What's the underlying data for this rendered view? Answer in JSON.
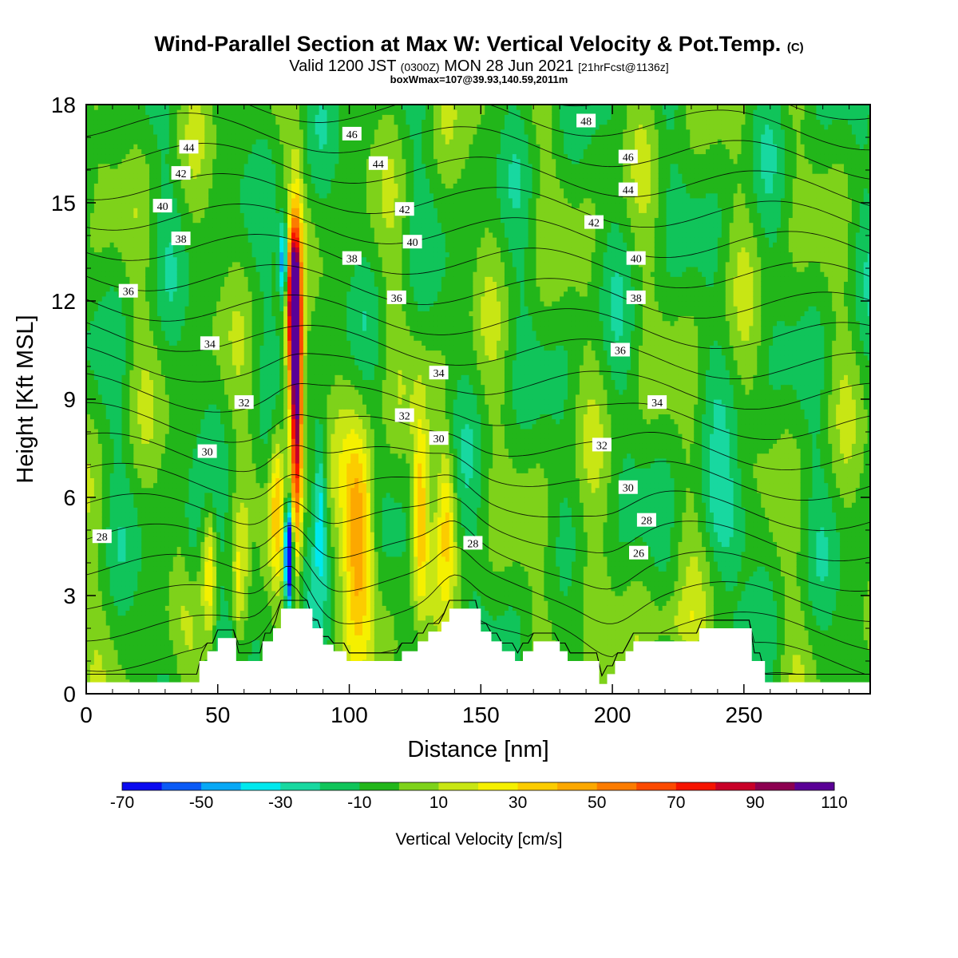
{
  "header": {
    "title": "Wind-Parallel Section at Max W: Vertical Velocity & Pot.Temp.",
    "title_tag": "(C)",
    "subtitle_valid": "Valid 1200 JST",
    "subtitle_utc": "(0300Z)",
    "subtitle_date": "MON 28 Jun 2021",
    "subtitle_fcst": "[21hrFcst@1136z]",
    "box_line": "boxWmax=107@39.93,140.59,2011m"
  },
  "chart_data": {
    "type": "heatmap",
    "xlabel": "Distance [nm]",
    "ylabel": "Height [Kft MSL]",
    "xlim": [
      0,
      298
    ],
    "ylim": [
      0,
      18
    ],
    "xticks": [
      0,
      50,
      100,
      150,
      200,
      250
    ],
    "yticks": [
      0,
      3,
      6,
      9,
      12,
      15,
      18
    ],
    "colorbar": {
      "title": "Vertical Velocity [cm/s]",
      "ticks": [
        -70,
        -50,
        -30,
        -10,
        10,
        30,
        50,
        70,
        90,
        110
      ],
      "bounds": [
        -70,
        -60,
        -50,
        -40,
        -30,
        -20,
        -10,
        0,
        10,
        20,
        30,
        40,
        50,
        60,
        70,
        80,
        90,
        100,
        110
      ],
      "colors": [
        "#0a0af0",
        "#0a5af5",
        "#08a8f5",
        "#00e8ee",
        "#18d8a0",
        "#10c45a",
        "#22b61a",
        "#7ed21a",
        "#c8e614",
        "#f5f000",
        "#fccc00",
        "#fca800",
        "#fc7c00",
        "#fc4a00",
        "#f51400",
        "#c80028",
        "#8c0050",
        "#5a0096"
      ]
    },
    "terrain_kft": [
      [
        0,
        0.35
      ],
      [
        42,
        0.35
      ],
      [
        43,
        1.0
      ],
      [
        46,
        1.3
      ],
      [
        50,
        1.7
      ],
      [
        55,
        1.7
      ],
      [
        57,
        1.0
      ],
      [
        65,
        1.0
      ],
      [
        67,
        1.6
      ],
      [
        71,
        2.0
      ],
      [
        74,
        2.6
      ],
      [
        82,
        2.6
      ],
      [
        86,
        2.0
      ],
      [
        90,
        1.5
      ],
      [
        94,
        1.3
      ],
      [
        99,
        1.0
      ],
      [
        116,
        1.0
      ],
      [
        120,
        1.3
      ],
      [
        126,
        1.6
      ],
      [
        130,
        1.9
      ],
      [
        135,
        2.2
      ],
      [
        138,
        2.6
      ],
      [
        147,
        2.6
      ],
      [
        150,
        1.9
      ],
      [
        154,
        1.6
      ],
      [
        158,
        1.3
      ],
      [
        163,
        1.0
      ],
      [
        166,
        1.3
      ],
      [
        170,
        1.6
      ],
      [
        178,
        1.6
      ],
      [
        180,
        1.3
      ],
      [
        183,
        1.0
      ],
      [
        190,
        1.0
      ],
      [
        195,
        0.3
      ],
      [
        198,
        0.6
      ],
      [
        201,
        1.0
      ],
      [
        205,
        1.3
      ],
      [
        208,
        1.6
      ],
      [
        228,
        1.6
      ],
      [
        233,
        2.0
      ],
      [
        250,
        2.0
      ],
      [
        253,
        1.0
      ],
      [
        258,
        0.35
      ],
      [
        298,
        0.35
      ]
    ],
    "theta_labels": [
      {
        "text": "46",
        "x": 101,
        "y": 17.1
      },
      {
        "text": "48",
        "x": 190,
        "y": 17.5
      },
      {
        "text": "44",
        "x": 39,
        "y": 16.7
      },
      {
        "text": "44",
        "x": 111,
        "y": 16.2
      },
      {
        "text": "46",
        "x": 206,
        "y": 16.4
      },
      {
        "text": "42",
        "x": 36,
        "y": 15.9
      },
      {
        "text": "44",
        "x": 206,
        "y": 15.4
      },
      {
        "text": "40",
        "x": 29,
        "y": 14.9
      },
      {
        "text": "42",
        "x": 121,
        "y": 14.8
      },
      {
        "text": "42",
        "x": 193,
        "y": 14.4
      },
      {
        "text": "38",
        "x": 36,
        "y": 13.9
      },
      {
        "text": "40",
        "x": 124,
        "y": 13.8
      },
      {
        "text": "38",
        "x": 101,
        "y": 13.3
      },
      {
        "text": "40",
        "x": 209,
        "y": 13.3
      },
      {
        "text": "36",
        "x": 16,
        "y": 12.3
      },
      {
        "text": "36",
        "x": 118,
        "y": 12.1
      },
      {
        "text": "38",
        "x": 209,
        "y": 12.1
      },
      {
        "text": "34",
        "x": 47,
        "y": 10.7
      },
      {
        "text": "36",
        "x": 203,
        "y": 10.5
      },
      {
        "text": "34",
        "x": 134,
        "y": 9.8
      },
      {
        "text": "32",
        "x": 60,
        "y": 8.9
      },
      {
        "text": "34",
        "x": 217,
        "y": 8.9
      },
      {
        "text": "32",
        "x": 121,
        "y": 8.5
      },
      {
        "text": "30",
        "x": 134,
        "y": 7.8
      },
      {
        "text": "32",
        "x": 196,
        "y": 7.6
      },
      {
        "text": "30",
        "x": 46,
        "y": 7.4
      },
      {
        "text": "30",
        "x": 206,
        "y": 6.3
      },
      {
        "text": "28",
        "x": 213,
        "y": 5.3
      },
      {
        "text": "28",
        "x": 6,
        "y": 4.8
      },
      {
        "text": "28",
        "x": 147,
        "y": 4.6
      },
      {
        "text": "26",
        "x": 210,
        "y": 4.3
      }
    ],
    "w_features": [
      {
        "x": 80,
        "y": 9.5,
        "sx": 1.6,
        "sy": 3.2,
        "v": 110
      },
      {
        "x": 78.5,
        "y": 12.5,
        "sx": 1.5,
        "sy": 1.3,
        "v": 60
      },
      {
        "x": 78,
        "y": 10.5,
        "sx": 1.8,
        "sy": 1.6,
        "v": 35
      },
      {
        "x": 72.5,
        "y": 5.8,
        "sx": 2.0,
        "sy": 1.9,
        "v": 40
      },
      {
        "x": 77,
        "y": 4.3,
        "sx": 1.0,
        "sy": 1.0,
        "v": -110
      },
      {
        "x": 75,
        "y": 13.2,
        "sx": 1.2,
        "sy": 0.9,
        "v": -55
      },
      {
        "x": 89,
        "y": 5.8,
        "sx": 1.6,
        "sy": 1.6,
        "v": -30
      },
      {
        "x": 104,
        "y": 4.8,
        "sx": 4.0,
        "sy": 2.4,
        "v": 55
      },
      {
        "x": 127,
        "y": 5.5,
        "sx": 2.2,
        "sy": 2.2,
        "v": 45
      },
      {
        "x": 137,
        "y": 5.6,
        "sx": 2.4,
        "sy": 1.6,
        "v": 30
      },
      {
        "x": 47,
        "y": 3.8,
        "sx": 1.7,
        "sy": 1.5,
        "v": 35
      },
      {
        "x": 58,
        "y": 3.2,
        "sx": 1.6,
        "sy": 1.4,
        "v": 20
      },
      {
        "x": 64,
        "y": 4.0,
        "sx": 1.6,
        "sy": 1.3,
        "v": -12
      },
      {
        "x": 40,
        "y": 4.4,
        "sx": 2.2,
        "sy": 1.2,
        "v": -14
      },
      {
        "x": 242,
        "y": 5.3,
        "sx": 8.0,
        "sy": 1.1,
        "v": -18
      },
      {
        "x": 225,
        "y": 2.1,
        "sx": 7.0,
        "sy": 0.7,
        "v": 18
      },
      {
        "x": 186,
        "y": 3.0,
        "sx": 6.0,
        "sy": 1.4,
        "v": 14
      }
    ]
  }
}
